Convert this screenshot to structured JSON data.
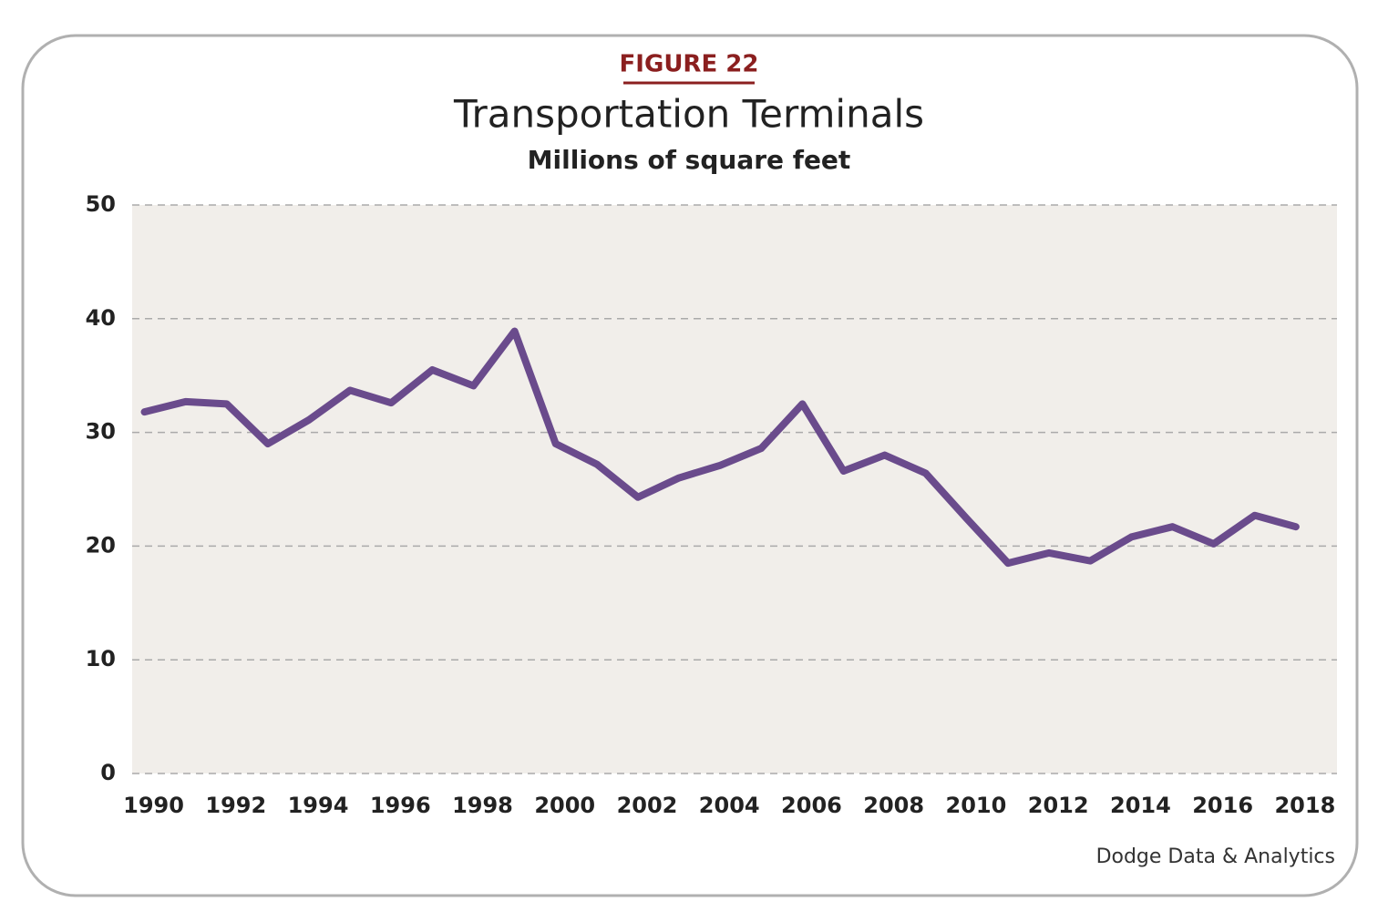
{
  "chart_data": {
    "type": "line",
    "label": "FIGURE 22",
    "title": "Transportation Terminals",
    "subtitle": "Millions of square feet",
    "source": "Dodge Data & Analytics",
    "x": [
      1990,
      1991,
      1992,
      1993,
      1994,
      1995,
      1996,
      1997,
      1998,
      1999,
      2000,
      2001,
      2002,
      2003,
      2004,
      2005,
      2006,
      2007,
      2008,
      2009,
      2010,
      2011,
      2012,
      2013,
      2014,
      2015,
      2016,
      2017,
      2018
    ],
    "series": [
      {
        "name": "Transportation Terminals",
        "color": "#6a4b8c",
        "values": [
          31.8,
          32.7,
          32.5,
          29.0,
          31.1,
          33.7,
          32.6,
          35.5,
          34.1,
          38.9,
          29.0,
          27.2,
          24.3,
          26.0,
          27.1,
          28.6,
          32.5,
          26.6,
          28.0,
          26.4,
          22.4,
          18.5,
          19.4,
          18.7,
          20.8,
          21.7,
          20.2,
          22.7,
          21.7
        ]
      }
    ],
    "xlim": [
      1989.7,
      2019
    ],
    "xticks": [
      1990,
      1992,
      1994,
      1996,
      1998,
      2000,
      2002,
      2004,
      2006,
      2008,
      2010,
      2012,
      2014,
      2016,
      2018
    ],
    "ylim": [
      0,
      50
    ],
    "yticks": [
      0,
      10,
      20,
      30,
      40,
      50
    ],
    "grid": true
  }
}
